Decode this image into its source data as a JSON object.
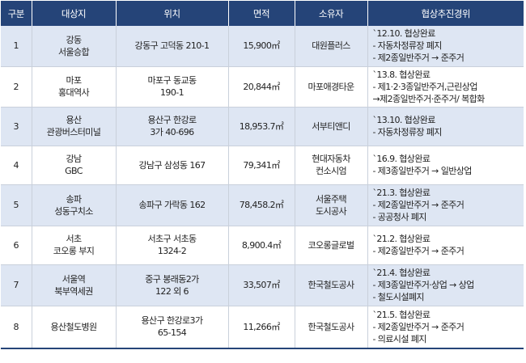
{
  "header": [
    "구분",
    "대상지",
    "위치",
    "면적",
    "소유자",
    "협상추진경위"
  ],
  "rows": [
    {
      "no": "1",
      "site": [
        "강동",
        "서울승합"
      ],
      "location": [
        "강동구 고덕동 210-1"
      ],
      "area": "15,900㎡",
      "owner": [
        "대원플러스"
      ],
      "progress": [
        "`12.10. 협상완료",
        "- 자동차정류장 폐지",
        "- 제2종일반주거 → 준주거"
      ]
    },
    {
      "no": "2",
      "site": [
        "마포",
        "홍대역사"
      ],
      "location": [
        "마포구 동교동",
        "190-1"
      ],
      "area": "20,844㎡",
      "owner": [
        "마포애경타운"
      ],
      "progress": [
        "`13.8. 협상완료",
        "- 제1·2·3종일반주거,근린상업",
        "→제2종일반주거·준주거/ 복합화"
      ]
    },
    {
      "no": "3",
      "site": [
        "용산",
        "관광버스터미널"
      ],
      "location": [
        "용산구 한강로",
        "3가 40-696"
      ],
      "area": "18,953.7㎡",
      "owner": [
        "서부티앤디"
      ],
      "progress": [
        "`13.10. 협상완료",
        "- 자동차정류장 폐지"
      ]
    },
    {
      "no": "4",
      "site": [
        "강남",
        "GBC"
      ],
      "location": [
        "강남구 삼성동 167"
      ],
      "area": "79,341㎡",
      "owner": [
        "현대자동차",
        "컨소시엄"
      ],
      "progress": [
        "`16.9. 협상완료",
        "- 제3종일반주거 → 일반상업"
      ]
    },
    {
      "no": "5",
      "site": [
        "송파",
        "성동구치소"
      ],
      "location": [
        "송파구 가락동 162"
      ],
      "area": "78,458.2㎡",
      "owner": [
        "서울주택",
        "도시공사"
      ],
      "progress": [
        "`21.3. 협상완료",
        "- 제2종일반주거 → 준주거",
        "- 공공청사 폐지"
      ]
    },
    {
      "no": "6",
      "site": [
        "서초",
        "코오롱 부지"
      ],
      "location": [
        "서초구 서초동",
        "1324-2"
      ],
      "area": "8,900.4㎡",
      "owner": [
        "코오롱글로벌"
      ],
      "progress": [
        "`21.2. 협상완료",
        "- 제2종일반주거 → 준주거"
      ]
    },
    {
      "no": "7",
      "site": [
        "서울역",
        "북부역세권"
      ],
      "location": [
        "중구 봉래동2가",
        "122 외 6"
      ],
      "area": "33,507㎡",
      "owner": [
        "한국철도공사"
      ],
      "progress": [
        "`21.4. 협상완료",
        "- 제3종일반주거·상업 → 상업",
        "- 철도시설폐지"
      ]
    },
    {
      "no": "8",
      "site": [
        "용산철도병원"
      ],
      "location": [
        "용산구 한강로3가",
        "65-154"
      ],
      "area": "11,266㎡",
      "owner": [
        "한국철도공사"
      ],
      "progress": [
        "`21.5. 협상완료",
        "- 제2종일반주거 → 준주거",
        "- 의료시설 폐지"
      ]
    }
  ],
  "colors": {
    "header_bg": "#254478",
    "row_alt_bg": "#dee6f3",
    "grid": "#c9d0db"
  }
}
